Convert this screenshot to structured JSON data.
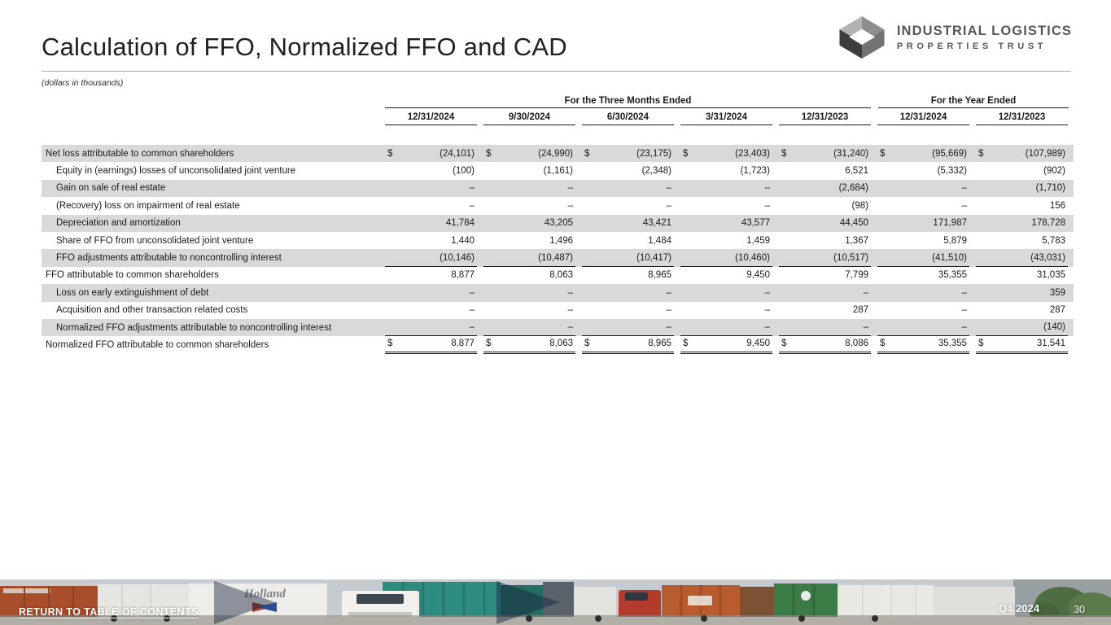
{
  "slide": {
    "title": "Calculation of FFO, Normalized FFO and CAD",
    "subtitle": "(dollars in thousands)"
  },
  "logo": {
    "name_line1": "INDUSTRIAL LOGISTICS",
    "name_line2": "PROPERTIES TRUST"
  },
  "table": {
    "group_headers": [
      {
        "label": "For the Three Months Ended",
        "span": 5
      },
      {
        "label": "For the Year Ended",
        "span": 2
      }
    ],
    "columns": [
      "12/31/2024",
      "9/30/2024",
      "6/30/2024",
      "3/31/2024",
      "12/31/2023",
      "12/31/2024",
      "12/31/2023"
    ],
    "rows": [
      {
        "label": "Net loss attributable to common shareholders",
        "indent": false,
        "shaded": true,
        "dollar": true,
        "underline": "none",
        "values": [
          "(24,101)",
          "(24,990)",
          "(23,175)",
          "(23,403)",
          "(31,240)",
          "(95,669)",
          "(107,989)"
        ]
      },
      {
        "label": "Equity in (earnings) losses of unconsolidated joint venture",
        "indent": true,
        "shaded": false,
        "dollar": false,
        "underline": "none",
        "values": [
          "(100)",
          "(1,161)",
          "(2,348)",
          "(1,723)",
          "6,521",
          "(5,332)",
          "(902)"
        ]
      },
      {
        "label": "Gain on sale of real estate",
        "indent": true,
        "shaded": true,
        "dollar": false,
        "underline": "none",
        "values": [
          "–",
          "–",
          "–",
          "–",
          "(2,684)",
          "–",
          "(1,710)"
        ]
      },
      {
        "label": "(Recovery) loss on impairment of real estate",
        "indent": true,
        "shaded": false,
        "dollar": false,
        "underline": "none",
        "values": [
          "–",
          "–",
          "–",
          "–",
          "(98)",
          "–",
          "156"
        ]
      },
      {
        "label": "Depreciation and amortization",
        "indent": true,
        "shaded": true,
        "dollar": false,
        "underline": "none",
        "values": [
          "41,784",
          "43,205",
          "43,421",
          "43,577",
          "44,450",
          "171,987",
          "178,728"
        ]
      },
      {
        "label": "Share of FFO from unconsolidated joint venture",
        "indent": true,
        "shaded": false,
        "dollar": false,
        "underline": "none",
        "values": [
          "1,440",
          "1,496",
          "1,484",
          "1,459",
          "1,367",
          "5,879",
          "5,783"
        ]
      },
      {
        "label": "FFO adjustments attributable to noncontrolling interest",
        "indent": true,
        "shaded": true,
        "dollar": false,
        "underline": "single",
        "values": [
          "(10,146)",
          "(10,487)",
          "(10,417)",
          "(10,460)",
          "(10,517)",
          "(41,510)",
          "(43,031)"
        ]
      },
      {
        "label": "FFO attributable to common shareholders",
        "indent": false,
        "shaded": false,
        "dollar": false,
        "underline": "none",
        "values": [
          "8,877",
          "8,063",
          "8,965",
          "9,450",
          "7,799",
          "35,355",
          "31,035"
        ]
      },
      {
        "label": "Loss on early extinguishment of debt",
        "indent": true,
        "shaded": true,
        "dollar": false,
        "underline": "none",
        "values": [
          "–",
          "–",
          "–",
          "–",
          "–",
          "–",
          "359"
        ]
      },
      {
        "label": "Acquisition and other transaction related costs",
        "indent": true,
        "shaded": false,
        "dollar": false,
        "underline": "none",
        "values": [
          "–",
          "–",
          "–",
          "–",
          "287",
          "–",
          "287"
        ]
      },
      {
        "label": "Normalized FFO adjustments attributable to noncontrolling interest",
        "indent": true,
        "shaded": true,
        "dollar": false,
        "underline": "single",
        "values": [
          "–",
          "–",
          "–",
          "–",
          "–",
          "–",
          "(140)"
        ]
      },
      {
        "label": "Normalized FFO attributable to common shareholders",
        "indent": false,
        "shaded": false,
        "dollar": true,
        "underline": "double",
        "values": [
          "8,877",
          "8,063",
          "8,965",
          "9,450",
          "8,086",
          "35,355",
          "31,541"
        ]
      }
    ]
  },
  "footer": {
    "return_link": "RETURN TO TABLE OF CONTENTS",
    "period_label": "Q4 2024",
    "page_number": "30",
    "photo_description": "freight trucks and shipping containers at a logistics yard"
  },
  "colors": {
    "row_band": "#d9d9d9",
    "table_text": "#1a1a1a",
    "logo_gray": "#56575b",
    "footer_overlay_navy": "#15223c"
  }
}
